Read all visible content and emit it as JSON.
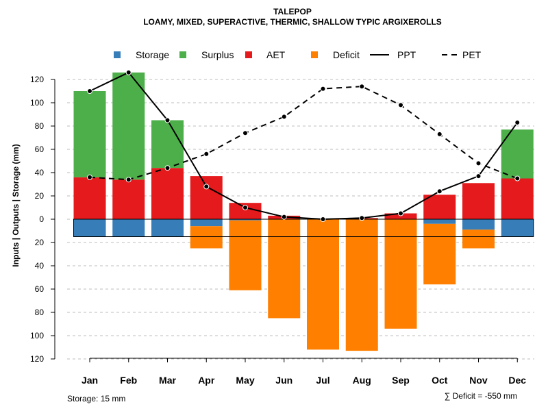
{
  "chart_data": {
    "type": "bar",
    "title": "TALEPOP",
    "subtitle": "LOAMY, MIXED, SUPERACTIVE, THERMIC, SHALLOW TYPIC ARGIXEROLLS",
    "ylabel": "Inputs | Outputs | Storage    (mm)",
    "ylim": [
      -120,
      130
    ],
    "yticks": [
      120,
      100,
      80,
      60,
      40,
      20,
      0,
      -20,
      -40,
      -60,
      -80,
      -100,
      -120
    ],
    "ytick_labels": [
      "120",
      "100",
      "80",
      "60",
      "40",
      "20",
      "0",
      "20",
      "40",
      "60",
      "80",
      "100",
      "120"
    ],
    "grid": true,
    "categories": [
      "Jan",
      "Feb",
      "Mar",
      "Apr",
      "May",
      "Jun",
      "Jul",
      "Aug",
      "Sep",
      "Oct",
      "Nov",
      "Dec"
    ],
    "legend": [
      {
        "label": "Storage",
        "kind": "box",
        "color": "#377eb8"
      },
      {
        "label": "Surplus",
        "kind": "box",
        "color": "#4daf4a"
      },
      {
        "label": "AET",
        "kind": "box",
        "color": "#e41a1c"
      },
      {
        "label": "Deficit",
        "kind": "box",
        "color": "#ff7f00"
      },
      {
        "label": "PPT",
        "kind": "solid",
        "color": "#000000"
      },
      {
        "label": "PET",
        "kind": "dashed",
        "color": "#000000"
      }
    ],
    "legend_position": "top",
    "series": [
      {
        "name": "AET",
        "color": "#e41a1c",
        "values": [
          36,
          34,
          44,
          37,
          14,
          3,
          0,
          1,
          5,
          21,
          31,
          35
        ]
      },
      {
        "name": "Surplus",
        "color": "#4daf4a",
        "values": [
          74,
          92,
          41,
          0,
          0,
          0,
          0,
          0,
          0,
          0,
          0,
          42
        ]
      },
      {
        "name": "Storage",
        "color": "#377eb8",
        "values": [
          15,
          15,
          15,
          6,
          1,
          0,
          0,
          0,
          0,
          4,
          9,
          15
        ]
      },
      {
        "name": "Deficit",
        "color": "#ff7f00",
        "values": [
          0,
          0,
          0,
          19,
          60,
          85,
          112,
          113,
          94,
          52,
          16,
          0
        ]
      },
      {
        "name": "PPT",
        "color": "#000000",
        "values": [
          110,
          126,
          85,
          28,
          10,
          2,
          0,
          1,
          5,
          24,
          37,
          83
        ]
      },
      {
        "name": "PET",
        "color": "#000000",
        "values": [
          36,
          34,
          44,
          56,
          74,
          88,
          112,
          114,
          98,
          73,
          48,
          35
        ]
      }
    ],
    "storage_capacity": 15,
    "storage_note": "Storage: 15 mm",
    "deficit_note": "∑ Deficit = -550 mm"
  }
}
